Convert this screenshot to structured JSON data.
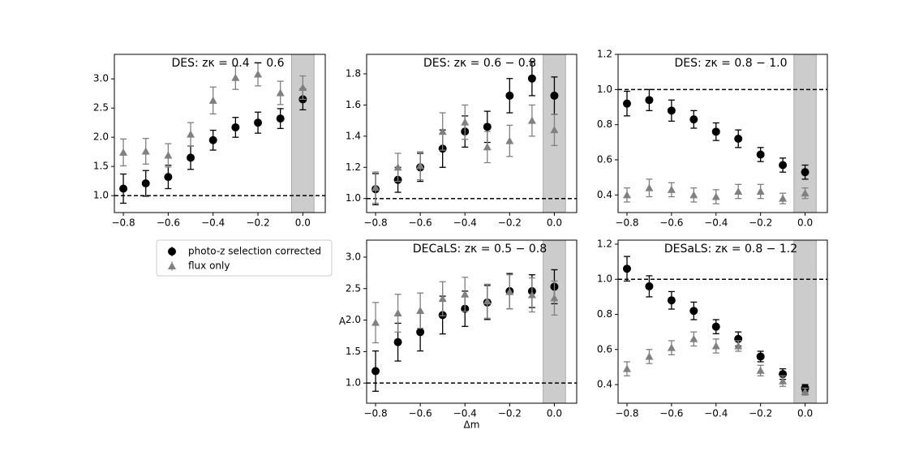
{
  "chart_data": [
    {
      "type": "errorbar",
      "title": "DES: zκ = 0.4 − 0.6",
      "x": [
        -0.8,
        -0.7,
        -0.6,
        -0.5,
        -0.4,
        -0.3,
        -0.2,
        -0.1,
        0.0
      ],
      "series": [
        {
          "name": "photo-z selection corrected",
          "color": "#000000",
          "marker": "circle",
          "values": [
            1.12,
            1.21,
            1.32,
            1.65,
            1.95,
            2.17,
            2.25,
            2.32,
            2.65
          ],
          "errors": [
            0.25,
            0.22,
            0.2,
            0.2,
            0.17,
            0.17,
            0.18,
            0.17,
            0.18
          ]
        },
        {
          "name": "flux only",
          "color": "#808080",
          "marker": "triangle",
          "values": [
            1.74,
            1.76,
            1.69,
            2.05,
            2.63,
            3.02,
            3.08,
            2.76,
            2.85
          ],
          "errors": [
            0.23,
            0.22,
            0.2,
            0.2,
            0.23,
            0.2,
            0.2,
            0.2,
            0.2
          ]
        }
      ],
      "xlim": [
        -0.84,
        0.1
      ],
      "ylim": [
        0.71,
        3.42
      ],
      "xticks": [
        {
          "value": -0.8,
          "label": "−0.8"
        },
        {
          "value": -0.6,
          "label": "−0.6"
        },
        {
          "value": -0.4,
          "label": "−0.4"
        },
        {
          "value": -0.2,
          "label": "−0.2"
        },
        {
          "value": 0,
          "label": "0.0"
        }
      ],
      "yticks": [
        {
          "value": 1,
          "label": "1.0"
        },
        {
          "value": 1.5,
          "label": "1.5"
        },
        {
          "value": 2,
          "label": "2.0"
        },
        {
          "value": 2.5,
          "label": "2.5"
        },
        {
          "value": 3,
          "label": "3.0"
        }
      ],
      "hline": 1,
      "shade": [
        -0.05,
        0.05
      ],
      "legend": true
    },
    {
      "type": "errorbar",
      "title": "DES: zκ = 0.6 − 0.8",
      "x": [
        -0.8,
        -0.7,
        -0.6,
        -0.5,
        -0.4,
        -0.3,
        -0.2,
        -0.1,
        0.0
      ],
      "series": [
        {
          "color": "#000000",
          "marker": "circle",
          "values": [
            1.06,
            1.12,
            1.2,
            1.32,
            1.43,
            1.46,
            1.66,
            1.77,
            1.66
          ],
          "errors": [
            0.1,
            0.08,
            0.09,
            0.12,
            0.1,
            0.1,
            0.11,
            0.11,
            0.12
          ]
        },
        {
          "color": "#808080",
          "marker": "triangle",
          "values": [
            1.07,
            1.2,
            1.21,
            1.43,
            1.49,
            1.33,
            1.37,
            1.5,
            1.44
          ],
          "errors": [
            0.1,
            0.09,
            0.09,
            0.12,
            0.11,
            0.1,
            0.1,
            0.1,
            0.1
          ]
        }
      ],
      "xlim": [
        -0.84,
        0.1
      ],
      "ylim": [
        0.91,
        1.925
      ],
      "xticks": [
        {
          "value": -0.8,
          "label": "−0.8"
        },
        {
          "value": -0.6,
          "label": "−0.6"
        },
        {
          "value": -0.4,
          "label": "−0.4"
        },
        {
          "value": -0.2,
          "label": "−0.2"
        },
        {
          "value": 0,
          "label": "0.0"
        }
      ],
      "yticks": [
        {
          "value": 1,
          "label": "1.0"
        },
        1.2,
        1.4,
        1.6,
        1.8
      ],
      "hline": 1,
      "shade": [
        -0.05,
        0.05
      ]
    },
    {
      "type": "errorbar",
      "title": "DES: zκ = 0.8 − 1.0",
      "x": [
        -0.8,
        -0.7,
        -0.6,
        -0.5,
        -0.4,
        -0.3,
        -0.2,
        -0.1,
        0.0
      ],
      "series": [
        {
          "color": "#000000",
          "marker": "circle",
          "values": [
            0.92,
            0.94,
            0.88,
            0.83,
            0.76,
            0.72,
            0.63,
            0.57,
            0.53
          ],
          "errors": [
            0.07,
            0.06,
            0.06,
            0.05,
            0.05,
            0.05,
            0.04,
            0.04,
            0.04
          ]
        },
        {
          "color": "#808080",
          "marker": "triangle",
          "values": [
            0.4,
            0.44,
            0.43,
            0.4,
            0.39,
            0.42,
            0.42,
            0.38,
            0.41
          ],
          "errors": [
            0.04,
            0.05,
            0.04,
            0.04,
            0.04,
            0.04,
            0.04,
            0.03,
            0.03
          ]
        }
      ],
      "xlim": [
        -0.84,
        0.1
      ],
      "ylim": [
        0.3,
        1.2
      ],
      "xticks": [
        {
          "value": -0.8,
          "label": "−0.8"
        },
        {
          "value": -0.6,
          "label": "−0.6"
        },
        {
          "value": -0.4,
          "label": "−0.4"
        },
        {
          "value": -0.2,
          "label": "−0.2"
        },
        {
          "value": 0,
          "label": "0.0"
        }
      ],
      "yticks": [
        0.4,
        0.6,
        0.8,
        {
          "value": 1,
          "label": "1.0"
        },
        1.2
      ],
      "hline": 1,
      "shade": [
        -0.05,
        0.05
      ]
    },
    {
      "type": "errorbar",
      "title": "DECaLS: zκ = 0.5 − 0.8",
      "xlabel": "Δm",
      "ylabel": "A",
      "x": [
        -0.8,
        -0.7,
        -0.6,
        -0.5,
        -0.4,
        -0.3,
        -0.2,
        -0.1,
        0.0
      ],
      "series": [
        {
          "color": "#000000",
          "marker": "circle",
          "values": [
            1.19,
            1.65,
            1.81,
            2.08,
            2.18,
            2.28,
            2.46,
            2.46,
            2.53
          ],
          "errors": [
            0.32,
            0.3,
            0.3,
            0.3,
            0.28,
            0.27,
            0.28,
            0.26,
            0.27
          ]
        },
        {
          "color": "#808080",
          "marker": "triangle",
          "values": [
            1.96,
            2.11,
            2.15,
            2.34,
            2.41,
            2.3,
            2.45,
            2.4,
            2.35
          ],
          "errors": [
            0.32,
            0.3,
            0.28,
            0.27,
            0.27,
            0.27,
            0.27,
            0.27,
            0.27
          ]
        }
      ],
      "xlim": [
        -0.84,
        0.1
      ],
      "ylim": [
        0.68,
        3.27
      ],
      "xticks": [
        {
          "value": -0.8,
          "label": "−0.8"
        },
        {
          "value": -0.6,
          "label": "−0.6"
        },
        {
          "value": -0.4,
          "label": "−0.4"
        },
        {
          "value": -0.2,
          "label": "−0.2"
        },
        {
          "value": 0,
          "label": "0.0"
        }
      ],
      "yticks": [
        {
          "value": 1,
          "label": "1.0"
        },
        {
          "value": 1.5,
          "label": "1.5"
        },
        {
          "value": 2,
          "label": "2.0"
        },
        {
          "value": 2.5,
          "label": "2.5"
        },
        {
          "value": 3,
          "label": "3.0"
        }
      ],
      "hline": 1,
      "shade": [
        -0.05,
        0.05
      ]
    },
    {
      "type": "errorbar",
      "title": "DESaLS: zκ = 0.8 − 1.2",
      "x": [
        -0.8,
        -0.7,
        -0.6,
        -0.5,
        -0.4,
        -0.3,
        -0.2,
        -0.1,
        0.0
      ],
      "series": [
        {
          "color": "#000000",
          "marker": "circle",
          "values": [
            1.06,
            0.96,
            0.88,
            0.82,
            0.73,
            0.66,
            0.56,
            0.46,
            0.38
          ],
          "errors": [
            0.07,
            0.06,
            0.05,
            0.05,
            0.04,
            0.04,
            0.03,
            0.03,
            0.02
          ]
        },
        {
          "color": "#808080",
          "marker": "triangle",
          "values": [
            0.49,
            0.56,
            0.61,
            0.66,
            0.62,
            0.62,
            0.48,
            0.42,
            0.36
          ],
          "errors": [
            0.04,
            0.04,
            0.04,
            0.04,
            0.04,
            0.03,
            0.03,
            0.03,
            0.02
          ]
        }
      ],
      "xlim": [
        -0.84,
        0.1
      ],
      "ylim": [
        0.294,
        1.223
      ],
      "xticks": [
        {
          "value": -0.8,
          "label": "−0.8"
        },
        {
          "value": -0.6,
          "label": "−0.6"
        },
        {
          "value": -0.4,
          "label": "−0.4"
        },
        {
          "value": -0.2,
          "label": "−0.2"
        },
        {
          "value": 0,
          "label": "0.0"
        }
      ],
      "yticks": [
        0.4,
        0.6,
        0.8,
        {
          "value": 1,
          "label": "1.0"
        },
        1.2
      ],
      "hline": 1,
      "shade": [
        -0.05,
        0.05
      ]
    }
  ]
}
